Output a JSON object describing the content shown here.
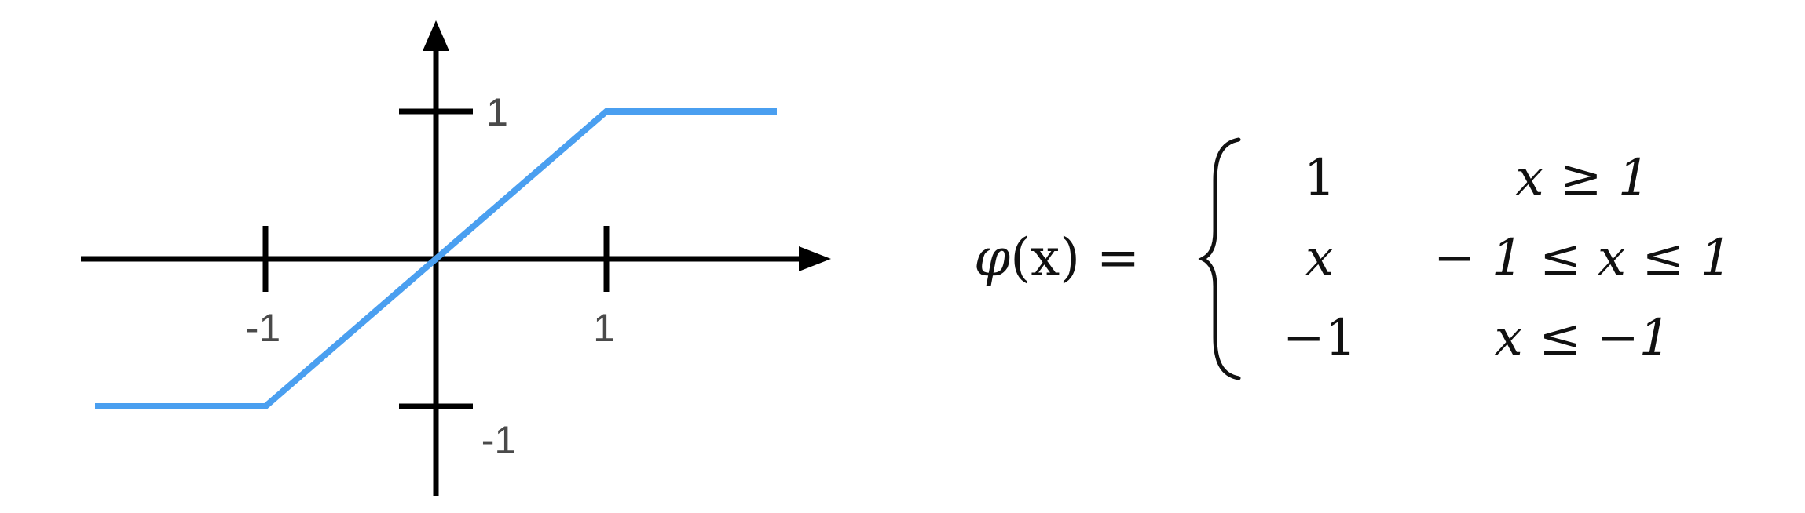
{
  "chart_data": {
    "type": "line",
    "title": "",
    "xlabel": "",
    "ylabel": "",
    "xlim": [
      -2.0,
      2.3
    ],
    "ylim": [
      -1.6,
      1.6
    ],
    "x_ticks": [
      -1,
      1
    ],
    "y_ticks": [
      -1,
      1
    ],
    "x_tick_labels": [
      "-1",
      "1"
    ],
    "y_tick_labels": [
      "-1",
      "1"
    ],
    "series": [
      {
        "x": [
          -2.0,
          -1,
          1,
          2.0
        ],
        "y": [
          -1,
          -1,
          1,
          1
        ],
        "color": "#4a9ff0"
      }
    ],
    "axis_color": "#000000",
    "grid": false
  },
  "formula": {
    "lhs_fn": "φ",
    "lhs_arg": "(x) =",
    "cases": [
      {
        "value": "1",
        "condition": "x ≥ 1"
      },
      {
        "value": "x",
        "condition": "− 1 ≤ x ≤ 1"
      },
      {
        "value": "−1",
        "condition": "x ≤ −1"
      }
    ]
  }
}
